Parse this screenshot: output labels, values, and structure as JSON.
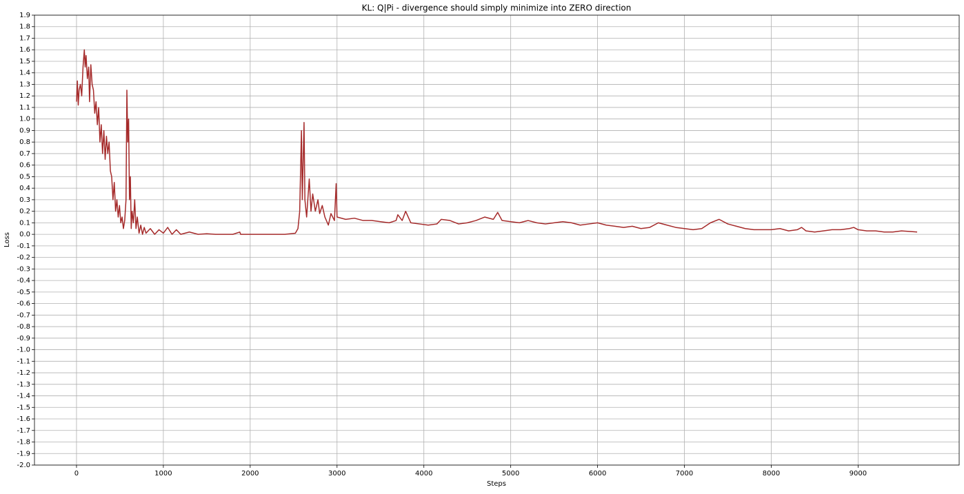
{
  "chart_data": {
    "type": "line",
    "title": "KL: Q|Pi - divergence should simply minimize into ZERO direction",
    "xlabel": "Steps",
    "ylabel": "Loss",
    "color": "#a52a2a",
    "grid": true,
    "xlim": [
      -484,
      10164
    ],
    "xticks": [
      0,
      1000,
      2000,
      3000,
      4000,
      5000,
      6000,
      7000,
      8000,
      9000
    ],
    "ylim": [
      -2.0,
      1.9
    ],
    "yticks": [
      {
        "value": -2.0,
        "label": "-2.0"
      },
      -1.9,
      -1.8,
      -1.7,
      -1.6,
      -1.5,
      -1.4,
      -1.3,
      -1.2,
      -1.1,
      {
        "value": -1.0,
        "label": "-1.0"
      },
      -0.9,
      -0.8,
      -0.7,
      -0.6,
      -0.5,
      -0.4,
      -0.3,
      -0.2,
      -0.1,
      {
        "value": 0,
        "label": "0.0"
      },
      0.1,
      0.2,
      0.3,
      0.4,
      0.5,
      0.6,
      0.7,
      0.8,
      0.9,
      {
        "value": 1.0,
        "label": "1.0"
      },
      1.1,
      1.2,
      1.3,
      1.4,
      1.5,
      1.6,
      1.7,
      1.8,
      1.9
    ],
    "x": [
      0,
      10,
      20,
      30,
      45,
      60,
      75,
      90,
      100,
      110,
      125,
      140,
      150,
      165,
      180,
      195,
      210,
      225,
      240,
      255,
      270,
      285,
      300,
      315,
      330,
      345,
      360,
      375,
      390,
      405,
      420,
      435,
      450,
      465,
      480,
      495,
      510,
      525,
      540,
      555,
      570,
      580,
      590,
      600,
      610,
      620,
      630,
      640,
      655,
      670,
      685,
      700,
      720,
      740,
      760,
      780,
      800,
      850,
      900,
      950,
      1000,
      1050,
      1100,
      1150,
      1200,
      1300,
      1400,
      1500,
      1600,
      1800,
      1880,
      1890,
      2000,
      2200,
      2400,
      2520,
      2550,
      2570,
      2590,
      2600,
      2620,
      2630,
      2650,
      2680,
      2700,
      2720,
      2750,
      2780,
      2800,
      2830,
      2860,
      2900,
      2930,
      2970,
      2990,
      3000,
      3100,
      3200,
      3300,
      3400,
      3500,
      3600,
      3680,
      3700,
      3750,
      3790,
      3850,
      3950,
      4050,
      4150,
      4200,
      4300,
      4400,
      4500,
      4600,
      4700,
      4800,
      4850,
      4900,
      5000,
      5100,
      5200,
      5300,
      5400,
      5500,
      5600,
      5700,
      5800,
      5900,
      6000,
      6100,
      6200,
      6300,
      6400,
      6500,
      6600,
      6700,
      6800,
      6900,
      7000,
      7100,
      7200,
      7300,
      7400,
      7500,
      7600,
      7700,
      7800,
      7900,
      8000,
      8100,
      8200,
      8300,
      8350,
      8400,
      8500,
      8600,
      8700,
      8800,
      8900,
      8950,
      9000,
      9100,
      9200,
      9300,
      9400,
      9500,
      9600,
      9680
    ],
    "values": [
      1.15,
      1.33,
      1.12,
      1.25,
      1.3,
      1.2,
      1.45,
      1.6,
      1.45,
      1.55,
      1.35,
      1.45,
      1.15,
      1.47,
      1.3,
      1.25,
      1.05,
      1.15,
      0.95,
      1.1,
      0.8,
      0.95,
      0.7,
      0.9,
      0.65,
      0.85,
      0.7,
      0.8,
      0.55,
      0.5,
      0.3,
      0.45,
      0.2,
      0.3,
      0.15,
      0.25,
      0.1,
      0.15,
      0.05,
      0.12,
      0.3,
      1.25,
      0.8,
      1.0,
      0.3,
      0.5,
      0.05,
      0.2,
      0.1,
      0.3,
      0.05,
      0.15,
      0.01,
      0.08,
      0.0,
      0.06,
      0.01,
      0.05,
      0.0,
      0.04,
      0.01,
      0.06,
      0.0,
      0.04,
      0.0,
      0.02,
      0.0,
      0.005,
      0.0,
      0.0,
      0.02,
      0.0,
      0.0,
      0.0,
      0.0,
      0.01,
      0.05,
      0.2,
      0.9,
      0.3,
      0.97,
      0.3,
      0.15,
      0.48,
      0.2,
      0.35,
      0.2,
      0.3,
      0.18,
      0.25,
      0.15,
      0.08,
      0.18,
      0.12,
      0.44,
      0.15,
      0.13,
      0.14,
      0.12,
      0.12,
      0.11,
      0.1,
      0.12,
      0.17,
      0.12,
      0.2,
      0.1,
      0.09,
      0.08,
      0.09,
      0.13,
      0.12,
      0.09,
      0.1,
      0.12,
      0.15,
      0.13,
      0.19,
      0.12,
      0.11,
      0.1,
      0.12,
      0.1,
      0.09,
      0.1,
      0.11,
      0.1,
      0.08,
      0.09,
      0.1,
      0.08,
      0.07,
      0.06,
      0.07,
      0.05,
      0.06,
      0.1,
      0.08,
      0.06,
      0.05,
      0.04,
      0.05,
      0.1,
      0.13,
      0.09,
      0.07,
      0.05,
      0.04,
      0.04,
      0.04,
      0.05,
      0.03,
      0.04,
      0.06,
      0.03,
      0.02,
      0.03,
      0.04,
      0.04,
      0.05,
      0.06,
      0.04,
      0.03,
      0.03,
      0.02,
      0.02,
      0.03,
      0.025,
      0.02
    ]
  }
}
